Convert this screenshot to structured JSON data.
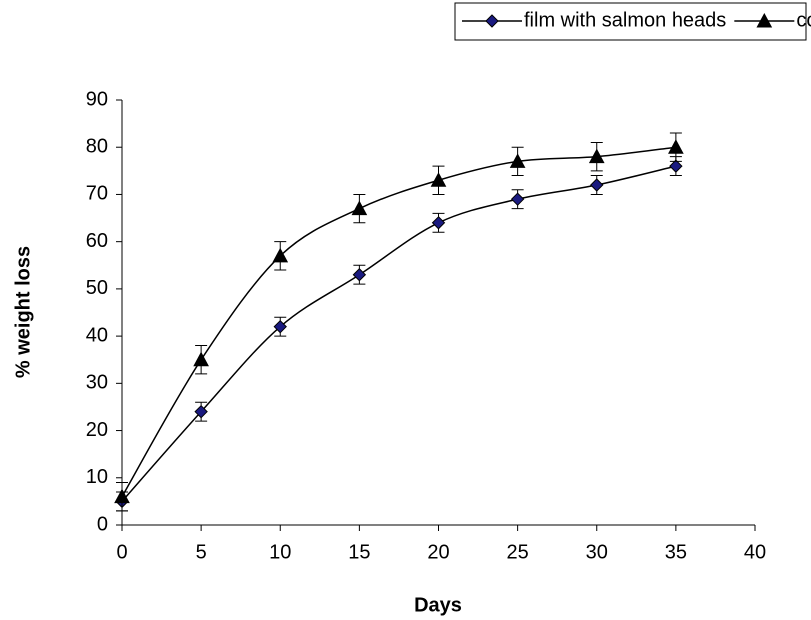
{
  "chart_data": {
    "type": "line",
    "x_label": "Days",
    "y_label": "% weight loss",
    "x": [
      0,
      5,
      10,
      15,
      20,
      25,
      30,
      35
    ],
    "series": [
      {
        "name": "film with salmon heads",
        "color": "#1a1a80",
        "marker": "diamond",
        "values": [
          5,
          24,
          42,
          53,
          64,
          69,
          72,
          76
        ],
        "errors": [
          2,
          2,
          2,
          2,
          2,
          2,
          2,
          2
        ]
      },
      {
        "name": "control without fish byproduct",
        "color": "#000000",
        "marker": "triangle",
        "values": [
          6,
          35,
          57,
          67,
          73,
          77,
          78,
          80
        ],
        "errors": [
          3,
          3,
          3,
          3,
          3,
          3,
          3,
          3
        ]
      }
    ],
    "xlim": [
      0,
      40
    ],
    "xticks": [
      0,
      5,
      10,
      15,
      20,
      25,
      30,
      35,
      40
    ],
    "ylim": [
      0,
      90
    ],
    "yticks": [
      0,
      10,
      20,
      30,
      40,
      50,
      60,
      70,
      80,
      90
    ],
    "legend": "top-right",
    "grid": false
  }
}
